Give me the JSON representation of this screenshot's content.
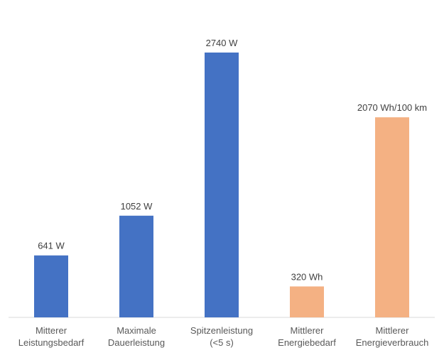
{
  "chart_data": {
    "type": "bar",
    "title": "",
    "xlabel": "",
    "ylabel": "",
    "ylim": [
      0,
      2740
    ],
    "grid": false,
    "categories": [
      [
        "Mitterer",
        "Leistungsbedarf"
      ],
      [
        "Maximale",
        "Dauerleistung"
      ],
      [
        "Spitzenleistung",
        "(<5 s)"
      ],
      [
        "Mittlerer",
        "Energiebedarf"
      ],
      [
        "Mittlerer",
        "Energieverbrauch"
      ]
    ],
    "values": [
      641,
      1052,
      2740,
      320,
      2070
    ],
    "data_labels": [
      "641 W",
      "1052 W",
      "2740 W",
      "320 Wh",
      "2070 Wh/100 km"
    ],
    "colors": [
      "#4472C4",
      "#4472C4",
      "#4472C4",
      "#F4B183",
      "#F4B183"
    ]
  }
}
